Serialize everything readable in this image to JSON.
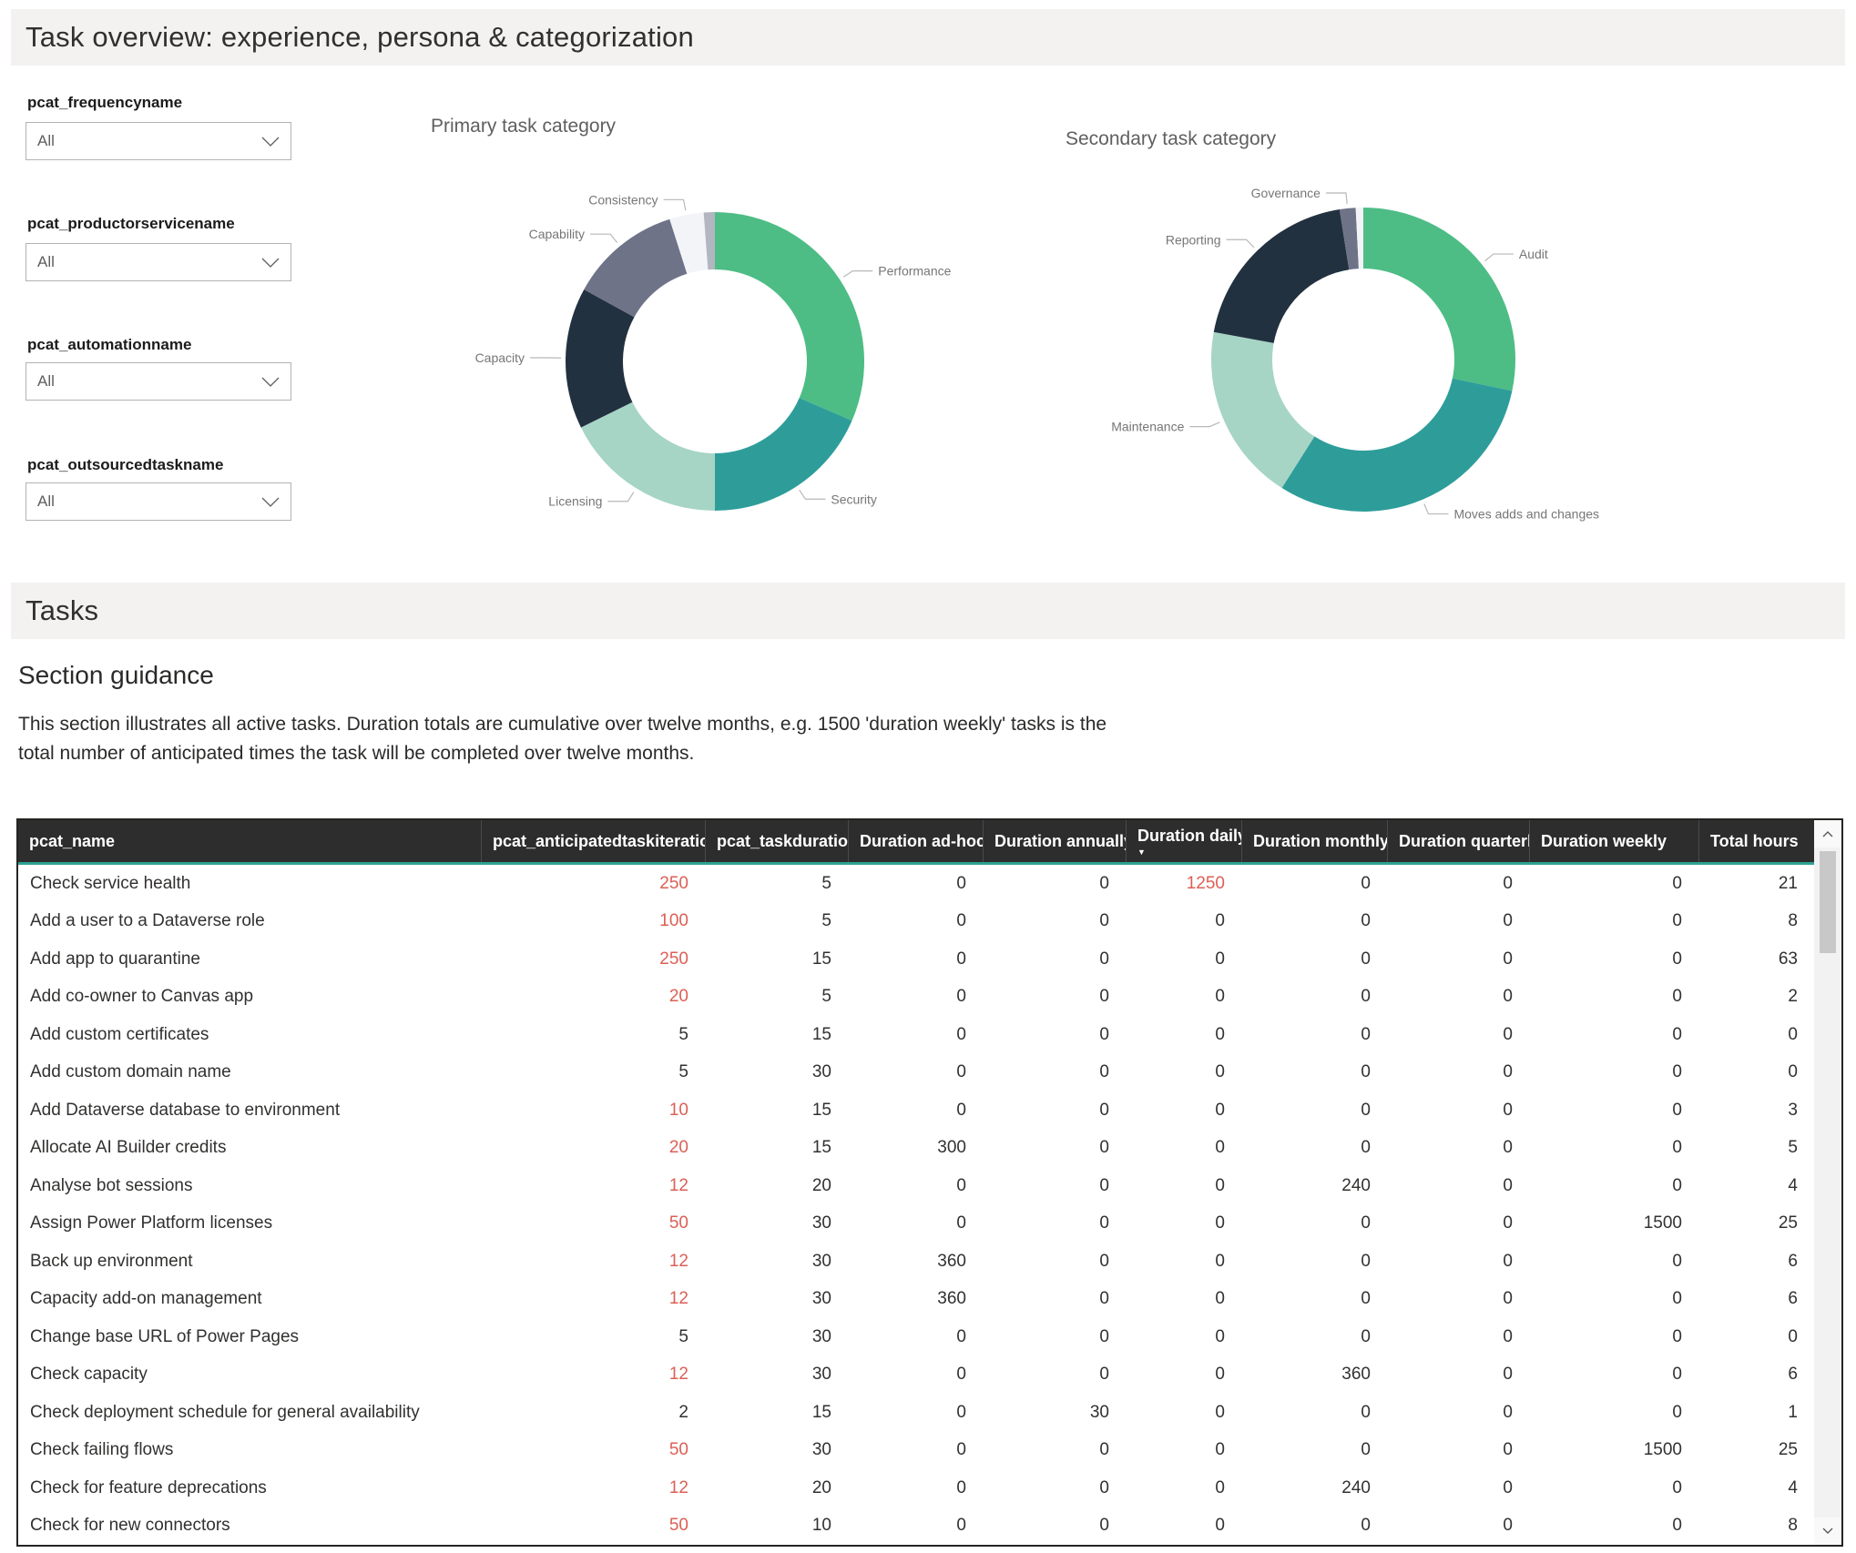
{
  "page": {
    "title": "Task overview: experience, persona & categorization",
    "tasks_band": "Tasks",
    "guidance_heading": "Section guidance",
    "guidance_lines": [
      "This section illustrates all active tasks. Duration totals are cumulative over twelve months, e.g. 1500 'duration weekly' tasks is the",
      "total number of anticipated times the task will be completed over twelve months."
    ]
  },
  "filters": [
    {
      "label": "pcat_frequencyname",
      "value": "All"
    },
    {
      "label": "pcat_productorservicename",
      "value": "All"
    },
    {
      "label": "pcat_automationname",
      "value": "All"
    },
    {
      "label": "pcat_outsourcedtaskname",
      "value": "All"
    }
  ],
  "icons": {
    "dropdown": "chevron-down",
    "scroll_up": "chevron-up",
    "scroll_down": "chevron-down",
    "sort": "triangle-down"
  },
  "colors": {
    "band_bg": "#f3f2f1",
    "table_header_bg": "#2d2d2d",
    "table_accent": "#2ea193",
    "red_value": "#dc5f55",
    "green": "#4dbd85",
    "teal": "#2e9d9a",
    "light_green": "#a6d5c5",
    "dark_navy": "#22313f",
    "gray_purple": "#6e7388",
    "white_slice": "#f3f4f8",
    "light_gray_slice": "#b2b6c0"
  },
  "chart_data": [
    {
      "type": "pie",
      "subtype": "donut",
      "title": "Primary task category",
      "legend_position": "callout-labels",
      "labels": [
        "Performance",
        "Security",
        "Licensing",
        "Capacity",
        "Capability",
        "Consistency",
        ""
      ],
      "values": [
        31.5,
        18.5,
        17.7,
        15.3,
        12.1,
        3.7,
        1.2
      ],
      "unit": "percent",
      "colors": [
        "#4dbd85",
        "#2e9d9a",
        "#a6d5c5",
        "#22313f",
        "#6e7388",
        "#f3f4f8",
        "#b2b6c0"
      ]
    },
    {
      "type": "pie",
      "subtype": "donut",
      "title": "Secondary task category",
      "legend_position": "callout-labels",
      "labels": [
        "Audit",
        "Moves adds and changes",
        "Maintenance",
        "Reporting",
        "Governance",
        ""
      ],
      "values": [
        28.3,
        30.7,
        18.9,
        19.6,
        1.7,
        0.8
      ],
      "unit": "percent",
      "colors": [
        "#4dbd85",
        "#2e9d9a",
        "#a6d5c5",
        "#22313f",
        "#6e7388",
        "#f3f4f8"
      ]
    }
  ],
  "table": {
    "columns": [
      {
        "label": "pcat_name"
      },
      {
        "label": "pcat_anticipatedtaskiteratio..."
      },
      {
        "label": "pcat_taskduration"
      },
      {
        "label": "Duration ad-hoc"
      },
      {
        "label": "Duration annually"
      },
      {
        "label": "Duration daily",
        "sorted": "desc"
      },
      {
        "label": "Duration monthly"
      },
      {
        "label": "Duration quarterly"
      },
      {
        "label": "Duration weekly"
      },
      {
        "label": "Total hours"
      }
    ],
    "rows": [
      {
        "name": "Check service health",
        "values": [
          250,
          5,
          0,
          0,
          1250,
          0,
          0,
          0,
          21
        ],
        "red": [
          0,
          4
        ]
      },
      {
        "name": "Add a user to a Dataverse role",
        "values": [
          100,
          5,
          0,
          0,
          0,
          0,
          0,
          0,
          8
        ],
        "red": [
          0
        ]
      },
      {
        "name": "Add app to quarantine",
        "values": [
          250,
          15,
          0,
          0,
          0,
          0,
          0,
          0,
          63
        ],
        "red": [
          0
        ]
      },
      {
        "name": "Add co-owner to Canvas app",
        "values": [
          20,
          5,
          0,
          0,
          0,
          0,
          0,
          0,
          2
        ],
        "red": [
          0
        ]
      },
      {
        "name": "Add custom certificates",
        "values": [
          5,
          15,
          0,
          0,
          0,
          0,
          0,
          0,
          0
        ],
        "red": []
      },
      {
        "name": "Add custom domain name",
        "values": [
          5,
          30,
          0,
          0,
          0,
          0,
          0,
          0,
          0
        ],
        "red": []
      },
      {
        "name": "Add Dataverse database to environment",
        "values": [
          10,
          15,
          0,
          0,
          0,
          0,
          0,
          0,
          3
        ],
        "red": [
          0
        ]
      },
      {
        "name": "Allocate AI Builder credits",
        "values": [
          20,
          15,
          300,
          0,
          0,
          0,
          0,
          0,
          5
        ],
        "red": [
          0
        ]
      },
      {
        "name": "Analyse bot sessions",
        "values": [
          12,
          20,
          0,
          0,
          0,
          240,
          0,
          0,
          4
        ],
        "red": [
          0
        ]
      },
      {
        "name": "Assign Power Platform licenses",
        "values": [
          50,
          30,
          0,
          0,
          0,
          0,
          0,
          1500,
          25
        ],
        "red": [
          0
        ]
      },
      {
        "name": "Back up environment",
        "values": [
          12,
          30,
          360,
          0,
          0,
          0,
          0,
          0,
          6
        ],
        "red": [
          0
        ]
      },
      {
        "name": "Capacity add-on management",
        "values": [
          12,
          30,
          360,
          0,
          0,
          0,
          0,
          0,
          6
        ],
        "red": [
          0
        ]
      },
      {
        "name": "Change base URL of Power Pages",
        "values": [
          5,
          30,
          0,
          0,
          0,
          0,
          0,
          0,
          0
        ],
        "red": []
      },
      {
        "name": "Check capacity",
        "values": [
          12,
          30,
          0,
          0,
          0,
          360,
          0,
          0,
          6
        ],
        "red": [
          0
        ]
      },
      {
        "name": "Check deployment schedule for general availability",
        "values": [
          2,
          15,
          0,
          30,
          0,
          0,
          0,
          0,
          1
        ],
        "red": []
      },
      {
        "name": "Check failing flows",
        "values": [
          50,
          30,
          0,
          0,
          0,
          0,
          0,
          1500,
          25
        ],
        "red": [
          0
        ]
      },
      {
        "name": "Check for feature deprecations",
        "values": [
          12,
          20,
          0,
          0,
          0,
          240,
          0,
          0,
          4
        ],
        "red": [
          0
        ]
      },
      {
        "name": "Check for new connectors",
        "values": [
          50,
          10,
          0,
          0,
          0,
          0,
          0,
          0,
          8
        ],
        "red": [
          0
        ]
      }
    ]
  }
}
